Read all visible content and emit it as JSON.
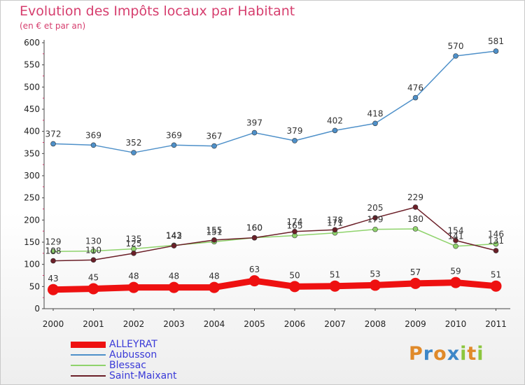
{
  "title": "Evolution des Impôts locaux par Habitant",
  "subtitle": "(en € et par an)",
  "logo": {
    "text": "Proxiti",
    "letters": [
      {
        "ch": "P",
        "color": "#e08a2a"
      },
      {
        "ch": "r",
        "color": "#3d87c8"
      },
      {
        "ch": "o",
        "color": "#e08a2a"
      },
      {
        "ch": "x",
        "color": "#3d87c8"
      },
      {
        "ch": "i",
        "color": "#8cc63e"
      },
      {
        "ch": "t",
        "color": "#e08a2a"
      },
      {
        "ch": "i",
        "color": "#8cc63e"
      }
    ]
  },
  "chart_data": {
    "type": "line",
    "categories": [
      "2000",
      "2001",
      "2002",
      "2003",
      "2004",
      "2005",
      "2006",
      "2007",
      "2008",
      "2009",
      "2010",
      "2011"
    ],
    "ylim": [
      0,
      600
    ],
    "yticks": [
      0,
      50,
      100,
      150,
      200,
      250,
      300,
      350,
      400,
      450,
      500,
      550,
      600
    ],
    "grid": false,
    "legend_position": "bottom-left",
    "series": [
      {
        "name": "ALLEYRAT",
        "color": "#ee1111",
        "labelColor": "#333333",
        "width": 9,
        "marker": 8,
        "values": [
          43,
          45,
          48,
          48,
          48,
          63,
          50,
          51,
          53,
          57,
          59,
          51
        ]
      },
      {
        "name": "Aubusson",
        "color": "#4e90c9",
        "labelColor": "#333333",
        "width": 1.5,
        "marker": 3.5,
        "values": [
          372,
          369,
          352,
          369,
          367,
          397,
          379,
          402,
          418,
          476,
          570,
          581
        ]
      },
      {
        "name": "Blessac",
        "color": "#8fd36c",
        "labelColor": "#333333",
        "width": 1.5,
        "marker": 3.5,
        "values": [
          129,
          130,
          135,
          143,
          151,
          160,
          165,
          171,
          179,
          180,
          141,
          146
        ]
      },
      {
        "name": "Saint-Maixant",
        "color": "#6b1f28",
        "labelColor": "#333333",
        "width": 1.5,
        "marker": 3.5,
        "values": [
          108,
          110,
          125,
          142,
          155,
          160,
          174,
          178,
          205,
          229,
          154,
          131
        ]
      }
    ]
  }
}
